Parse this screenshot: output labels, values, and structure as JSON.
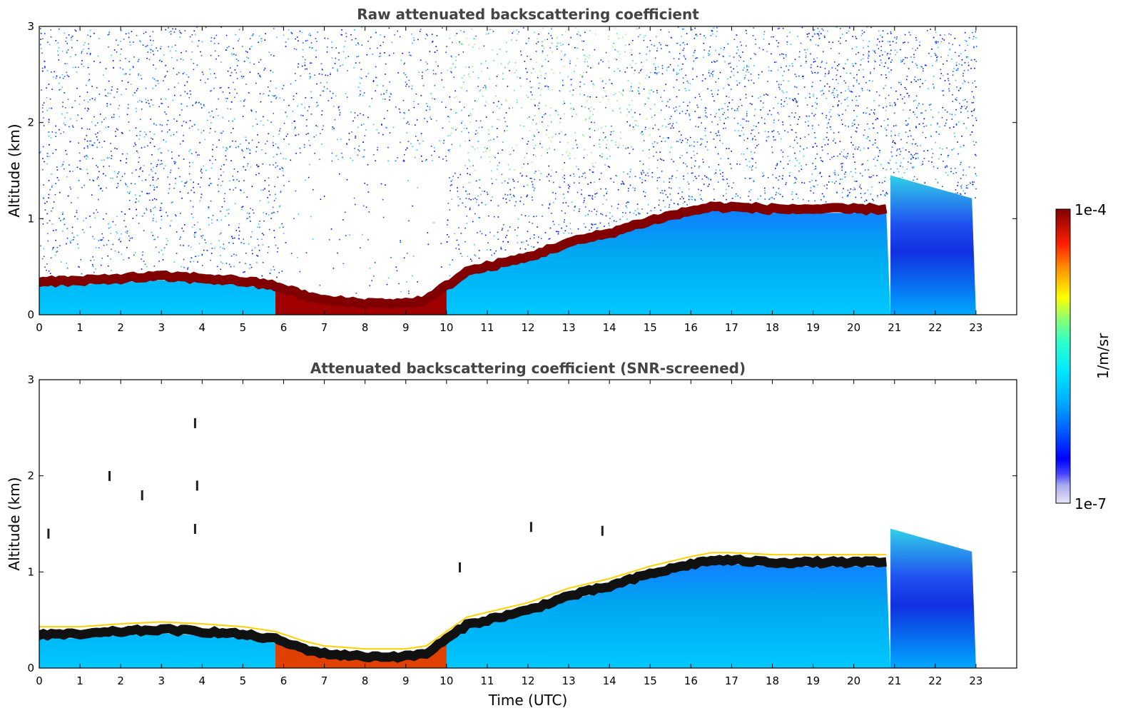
{
  "chart_data": [
    {
      "type": "heatmap",
      "title": "Raw attenuated backscattering coefficient",
      "xlabel": "",
      "ylabel": "Altitude (km)",
      "xlim": [
        0,
        24
      ],
      "ylim": [
        0,
        3
      ],
      "xticks": [
        "0",
        "1",
        "2",
        "3",
        "4",
        "5",
        "6",
        "7",
        "8",
        "9",
        "10",
        "11",
        "12",
        "13",
        "14",
        "15",
        "16",
        "17",
        "18",
        "19",
        "20",
        "21",
        "22",
        "23"
      ],
      "yticks": [
        "0",
        "1",
        "2",
        "3"
      ],
      "data_end_time": 23,
      "layer_top_profile": {
        "x": [
          0,
          1,
          2,
          3,
          4,
          5,
          5.8,
          6.5,
          7,
          8,
          9,
          9.5,
          10,
          10.5,
          11,
          12,
          13,
          14,
          15,
          16,
          16.5,
          17,
          18,
          19,
          20,
          20.9
        ],
        "y": [
          0.35,
          0.35,
          0.38,
          0.4,
          0.38,
          0.35,
          0.3,
          0.2,
          0.15,
          0.12,
          0.12,
          0.15,
          0.3,
          0.45,
          0.5,
          0.6,
          0.75,
          0.85,
          0.98,
          1.08,
          1.12,
          1.12,
          1.1,
          1.1,
          1.1,
          1.1
        ]
      },
      "residual_layer": {
        "x": [
          20.9,
          23
        ],
        "top": [
          1.45,
          1.2
        ]
      },
      "noise_field": "present above boundary layer, denser after 10 UTC"
    },
    {
      "type": "heatmap",
      "title": "Attenuated backscattering coefficient (SNR-screened)",
      "xlabel": "Time (UTC)",
      "ylabel": "Altitude (km)",
      "xlim": [
        0,
        24
      ],
      "ylim": [
        0,
        3
      ],
      "xticks": [
        "0",
        "1",
        "2",
        "3",
        "4",
        "5",
        "6",
        "7",
        "8",
        "9",
        "10",
        "11",
        "12",
        "13",
        "14",
        "15",
        "16",
        "17",
        "18",
        "19",
        "20",
        "21",
        "22",
        "23"
      ],
      "yticks": [
        "0",
        "1",
        "2",
        "3"
      ],
      "data_end_time": 23,
      "layer_top_profile": {
        "x": [
          0,
          1,
          2,
          3,
          4,
          5,
          5.8,
          6.5,
          7,
          8,
          9,
          9.5,
          10,
          10.5,
          11,
          12,
          13,
          14,
          15,
          16,
          16.5,
          17,
          18,
          19,
          20,
          20.9
        ],
        "y": [
          0.35,
          0.35,
          0.38,
          0.4,
          0.38,
          0.35,
          0.3,
          0.2,
          0.15,
          0.12,
          0.12,
          0.15,
          0.3,
          0.45,
          0.5,
          0.6,
          0.75,
          0.85,
          0.98,
          1.08,
          1.12,
          1.12,
          1.1,
          1.1,
          1.1,
          1.1
        ]
      },
      "residual_layer": {
        "x": [
          20.9,
          23
        ],
        "top": [
          1.45,
          1.2
        ]
      },
      "noise_field": "screened (removed)"
    }
  ],
  "colorbar": {
    "max_label": "1e-4",
    "min_label": "1e-7",
    "unit_label": "1/m/sr",
    "colormap": [
      "#e6e6f5",
      "#aaaaee",
      "#5555ff",
      "#0000ff",
      "#0050ff",
      "#00a0ff",
      "#00e0ff",
      "#30ffc0",
      "#80ff80",
      "#c0ff40",
      "#ffff00",
      "#ffc000",
      "#ff8000",
      "#ff3000",
      "#e00000",
      "#800000"
    ]
  }
}
